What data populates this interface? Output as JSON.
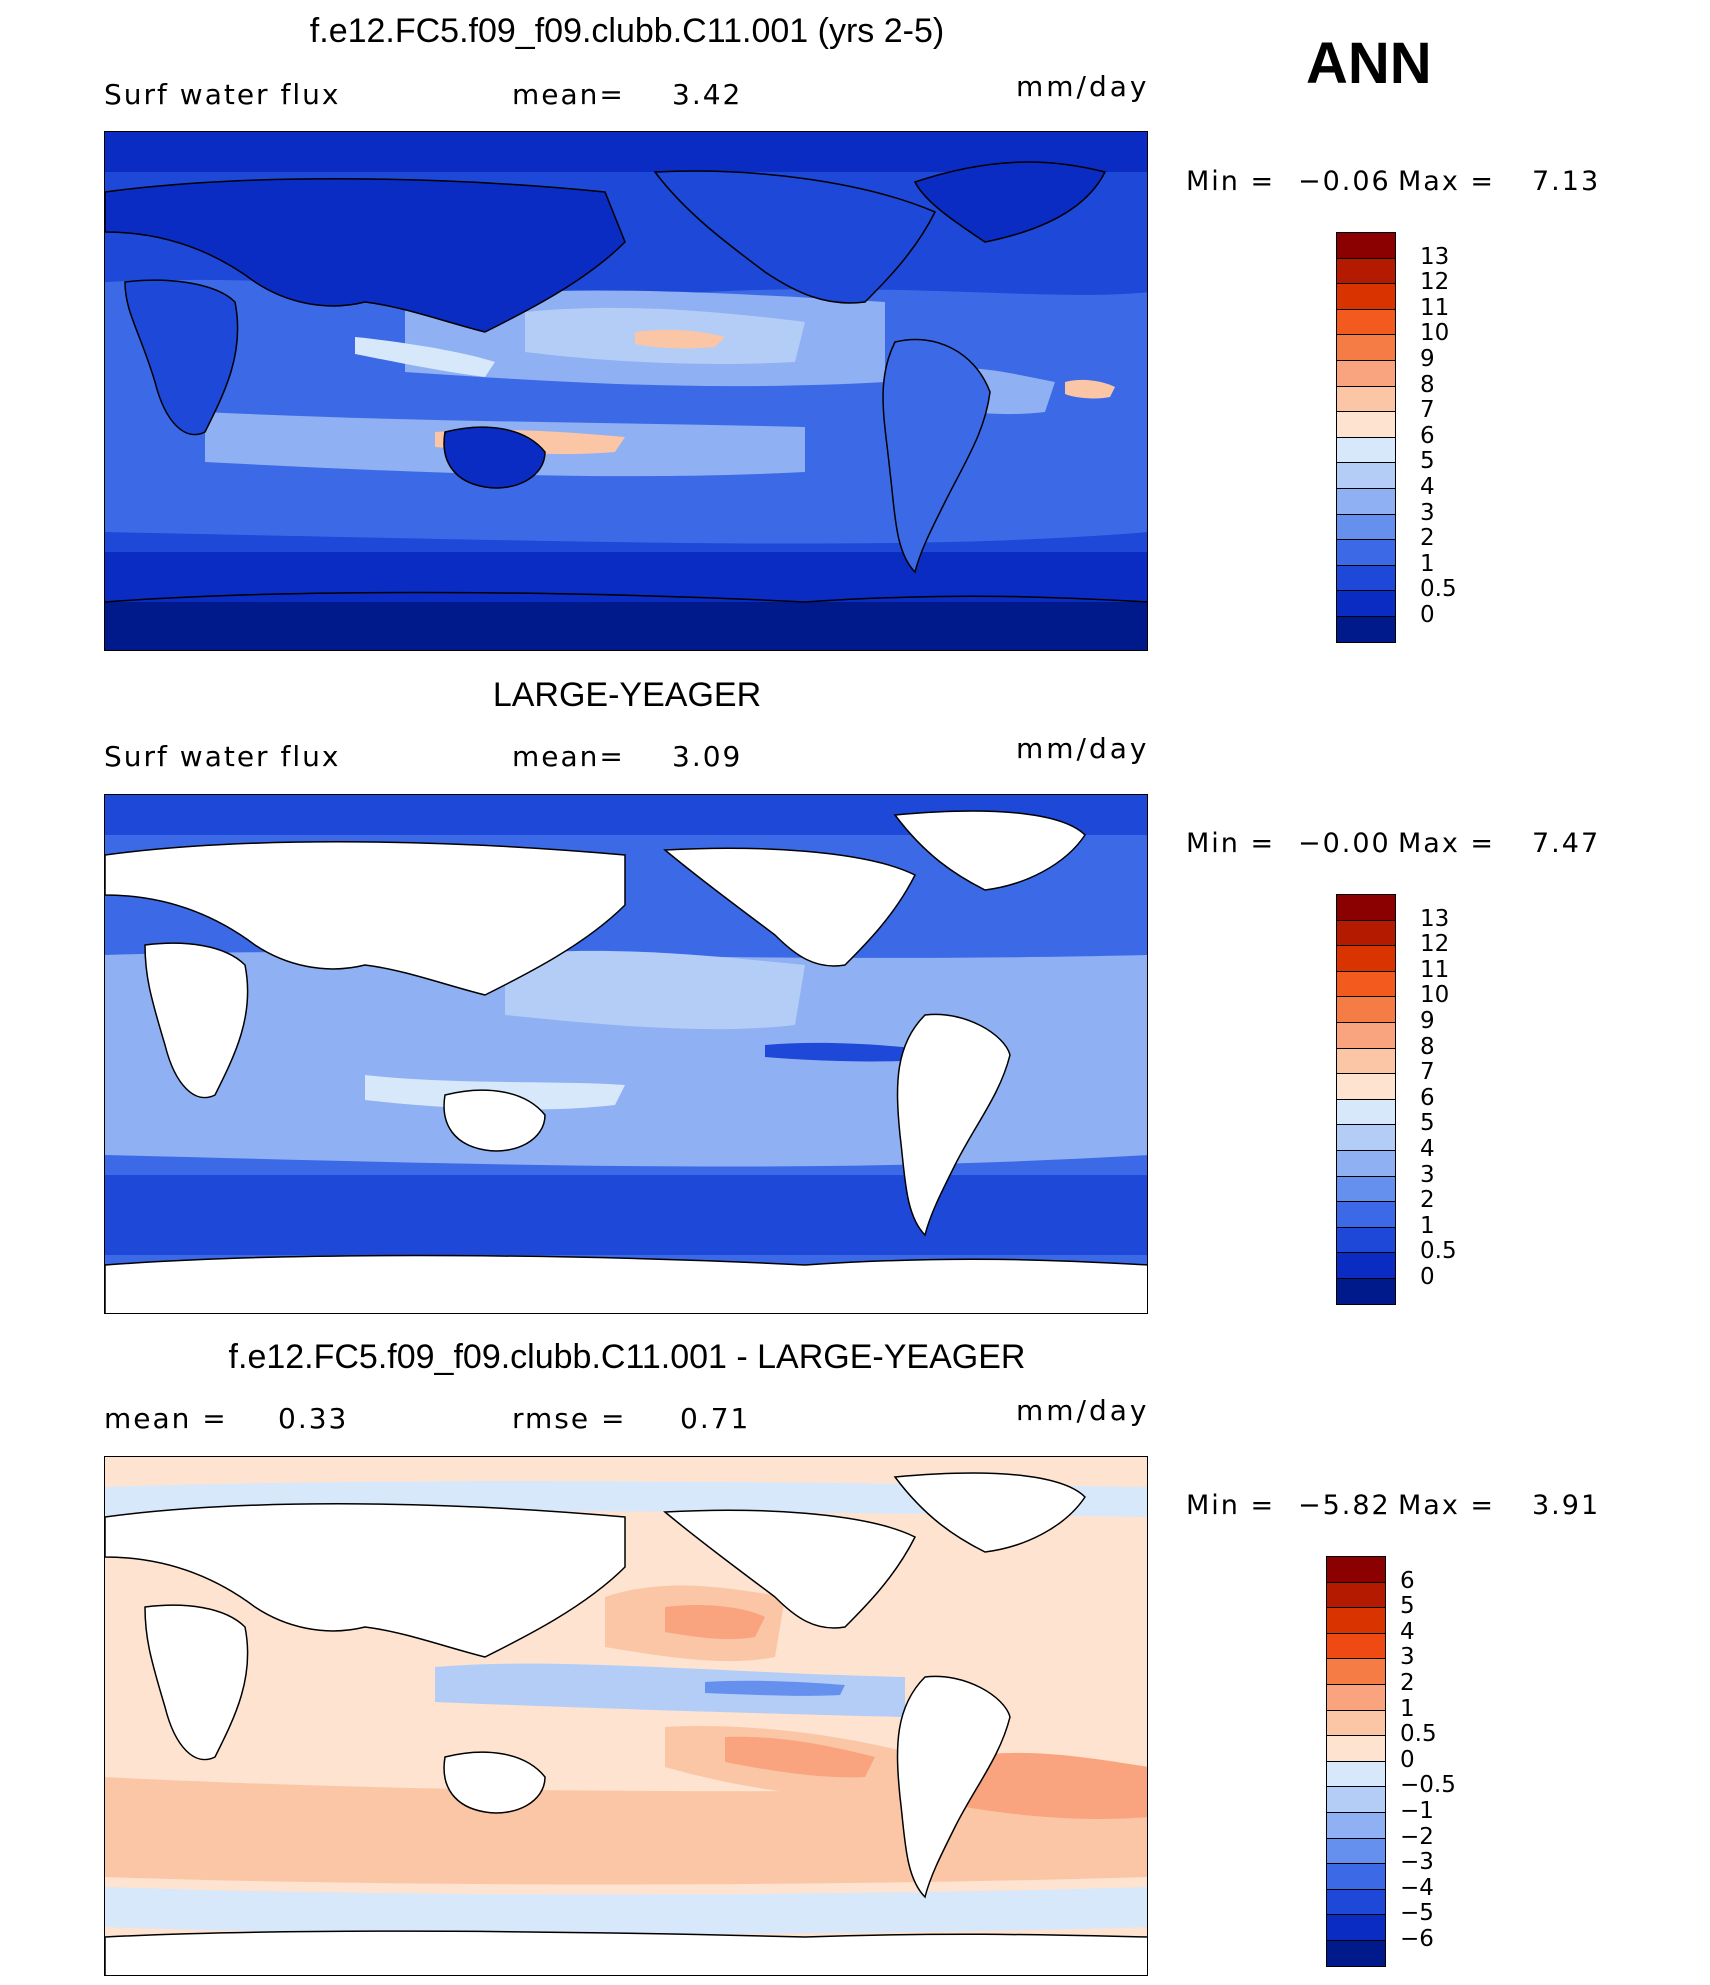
{
  "season": "ANN",
  "units": "mm/day",
  "panels": [
    {
      "title": "f.e12.FC5.f09_f09.clubb.C11.001 (yrs 2-5)",
      "variable": "Surf water flux",
      "stat_label": "mean=",
      "stat_value": "3.42",
      "min_label": "Min =",
      "min_value": "−0.06",
      "max_label": "Max =",
      "max_value": "7.13"
    },
    {
      "title": "LARGE-YEAGER",
      "variable": "Surf water flux",
      "stat_label": "mean=",
      "stat_value": "3.09",
      "min_label": "Min =",
      "min_value": "−0.00",
      "max_label": "Max =",
      "max_value": "7.47"
    },
    {
      "title": "f.e12.FC5.f09_f09.clubb.C11.001 - LARGE-YEAGER",
      "mean_label": "mean =",
      "mean_value": "0.33",
      "rmse_label": "rmse =",
      "rmse_value": "0.71",
      "min_label": "Min =",
      "min_value": "−5.82",
      "max_label": "Max =",
      "max_value": "3.91"
    }
  ],
  "colorbars": [
    {
      "labels": [
        "13",
        "12",
        "11",
        "10",
        "9",
        "8",
        "7",
        "6",
        "5",
        "4",
        "3",
        "2",
        "1",
        "0.5",
        "0"
      ],
      "colors": [
        "#8b0000",
        "#b31a00",
        "#d93300",
        "#f25a1e",
        "#f57c45",
        "#f9a47e",
        "#fbc6a6",
        "#fde3d0",
        "#d7e8fb",
        "#b3cdf7",
        "#8fb0f2",
        "#6690ee",
        "#3c6ae6",
        "#1d48d8",
        "#0a2cc2",
        "#001a8c"
      ]
    },
    {
      "labels": [
        "13",
        "12",
        "11",
        "10",
        "9",
        "8",
        "7",
        "6",
        "5",
        "4",
        "3",
        "2",
        "1",
        "0.5",
        "0"
      ],
      "colors": [
        "#8b0000",
        "#b31a00",
        "#d93300",
        "#f25a1e",
        "#f57c45",
        "#f9a47e",
        "#fbc6a6",
        "#fde3d0",
        "#d7e8fb",
        "#b3cdf7",
        "#8fb0f2",
        "#6690ee",
        "#3c6ae6",
        "#1d48d8",
        "#0a2cc2",
        "#001a8c"
      ]
    },
    {
      "labels": [
        "6",
        "5",
        "4",
        "3",
        "2",
        "1",
        "0.5",
        "0",
        "−0.5",
        "−1",
        "−2",
        "−3",
        "−4",
        "−5",
        "−6"
      ],
      "colors": [
        "#8b0000",
        "#b31a00",
        "#d93300",
        "#f04a14",
        "#f57c45",
        "#f9a47e",
        "#fbc6a6",
        "#fde3d0",
        "#d7e8fb",
        "#b3cdf7",
        "#8fb0f2",
        "#6690ee",
        "#3c6ae6",
        "#1d48d8",
        "#0a2cc2",
        "#001a8c"
      ]
    }
  ],
  "chart_data": [
    {
      "type": "heatmap",
      "title": "f.e12.FC5.f09_f09.clubb.C11.001 (yrs 2-5)",
      "variable": "Surf water flux",
      "units": "mm/day",
      "mean": 3.42,
      "min": -0.06,
      "max": 7.13,
      "contour_levels": [
        0,
        0.5,
        1,
        2,
        3,
        4,
        5,
        6,
        7,
        8,
        9,
        10,
        11,
        12,
        13
      ]
    },
    {
      "type": "heatmap",
      "title": "LARGE-YEAGER",
      "variable": "Surf water flux",
      "units": "mm/day",
      "mean": 3.09,
      "min": -0.0,
      "max": 7.47,
      "contour_levels": [
        0,
        0.5,
        1,
        2,
        3,
        4,
        5,
        6,
        7,
        8,
        9,
        10,
        11,
        12,
        13
      ]
    },
    {
      "type": "heatmap",
      "title": "f.e12.FC5.f09_f09.clubb.C11.001 - LARGE-YEAGER",
      "units": "mm/day",
      "mean": 0.33,
      "rmse": 0.71,
      "min": -5.82,
      "max": 3.91,
      "contour_levels": [
        -6,
        -5,
        -4,
        -3,
        -2,
        -1,
        -0.5,
        0,
        0.5,
        1,
        2,
        3,
        4,
        5,
        6
      ]
    }
  ]
}
